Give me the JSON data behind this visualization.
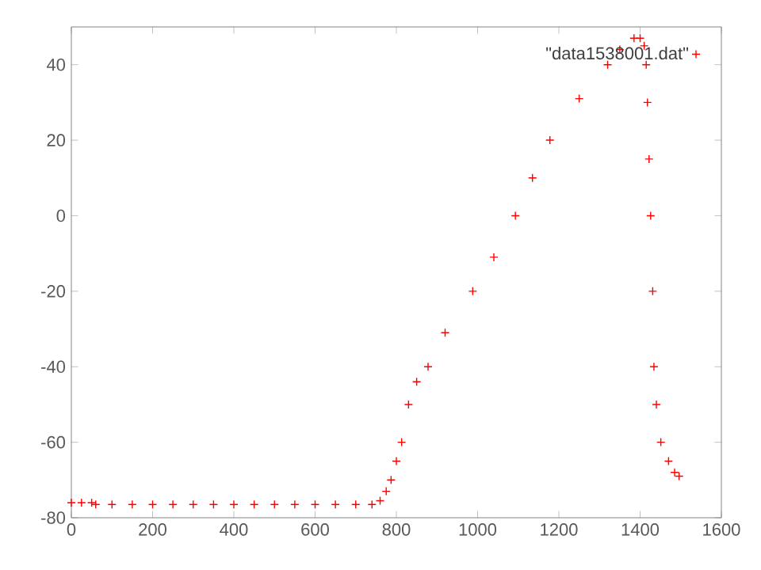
{
  "chart_data": {
    "type": "scatter",
    "xlim": [
      0,
      1600
    ],
    "ylim": [
      -80,
      50
    ],
    "xticks": [
      0,
      200,
      400,
      600,
      800,
      1000,
      1200,
      1400,
      1600
    ],
    "yticks": [
      -80,
      -60,
      -40,
      -20,
      0,
      20,
      40
    ],
    "legend": "top right",
    "marker": "cross",
    "series": [
      {
        "name": "\"data1538001.dat\"",
        "color": "#ff0000",
        "x": [
          0,
          25,
          50,
          60,
          100,
          150,
          200,
          250,
          300,
          350,
          400,
          450,
          500,
          550,
          600,
          650,
          700,
          740,
          760,
          775,
          787,
          800,
          813,
          830,
          850,
          878,
          920,
          988,
          1040,
          1093,
          1135,
          1178,
          1250,
          1320,
          1350,
          1385,
          1400,
          1410,
          1415,
          1418,
          1422,
          1426,
          1431,
          1434,
          1440,
          1451,
          1470,
          1485,
          1496
        ],
        "values": [
          -76,
          -76,
          -76,
          -76.5,
          -76.5,
          -76.5,
          -76.5,
          -76.5,
          -76.5,
          -76.5,
          -76.5,
          -76.5,
          -76.5,
          -76.5,
          -76.5,
          -76.5,
          -76.5,
          -76.5,
          -75.5,
          -73,
          -70,
          -65,
          -60,
          -50,
          -44,
          -40,
          -31,
          -20,
          -11,
          0,
          10,
          20,
          31,
          40,
          44,
          47,
          47,
          45,
          40,
          30,
          15,
          0,
          -20,
          -40,
          -50,
          -60,
          -65,
          -68,
          -69
        ]
      }
    ]
  }
}
